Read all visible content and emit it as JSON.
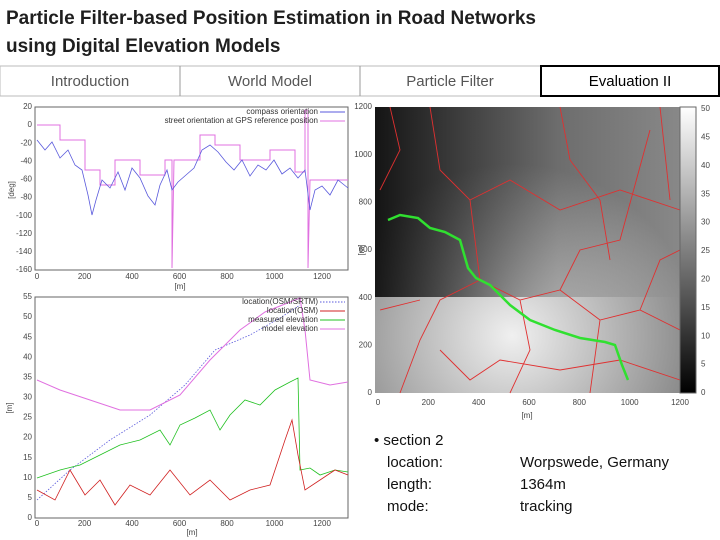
{
  "header": {
    "title_lines": [
      "Particle Filter-based Position Estimation in Road Networks",
      "using Digital Elevation Models"
    ]
  },
  "nav": {
    "tabs": [
      "Introduction",
      "World Model",
      "Particle Filter",
      "Evaluation II"
    ],
    "active": 3
  },
  "figures": {
    "orientation_plot": {
      "ylabel": "[deg]",
      "xlabel": "[m]",
      "yticks": [
        "20",
        "0",
        "-20",
        "-40",
        "-60",
        "-80",
        "-100",
        "-120",
        "-140",
        "-160"
      ],
      "xticks": [
        "0",
        "200",
        "400",
        "600",
        "800",
        "1000",
        "1200"
      ],
      "legend": [
        "compass orientation",
        "street orientation at GPS reference position"
      ]
    },
    "elevation_plot": {
      "ylabel": "[m]",
      "xlabel": "[m]",
      "yticks": [
        "55",
        "50",
        "45",
        "40",
        "35",
        "30",
        "25",
        "20",
        "15",
        "10",
        "5",
        "0"
      ],
      "xticks": [
        "0",
        "200",
        "400",
        "600",
        "800",
        "1000",
        "1200"
      ],
      "legend": [
        "location(OSM/SRTM)",
        "location(OSM)",
        "measured elevation",
        "model elevation"
      ]
    },
    "map": {
      "ylabel": "[m]",
      "xlabel": "[m]",
      "yticks": [
        "1200",
        "1000",
        "800",
        "600",
        "400",
        "200",
        "0"
      ],
      "xticks": [
        "0",
        "200",
        "400",
        "600",
        "800",
        "1000",
        "1200"
      ],
      "colorbar_ticks": [
        "50",
        "45",
        "40",
        "35",
        "30",
        "25",
        "20",
        "15",
        "10",
        "5",
        "0"
      ]
    }
  },
  "details": {
    "section": "• section 2",
    "rows": [
      {
        "label": "location:",
        "value": "Worpswede, Germany"
      },
      {
        "label": "length:",
        "value": "1364m"
      },
      {
        "label": "mode:",
        "value": "tracking"
      }
    ]
  }
}
